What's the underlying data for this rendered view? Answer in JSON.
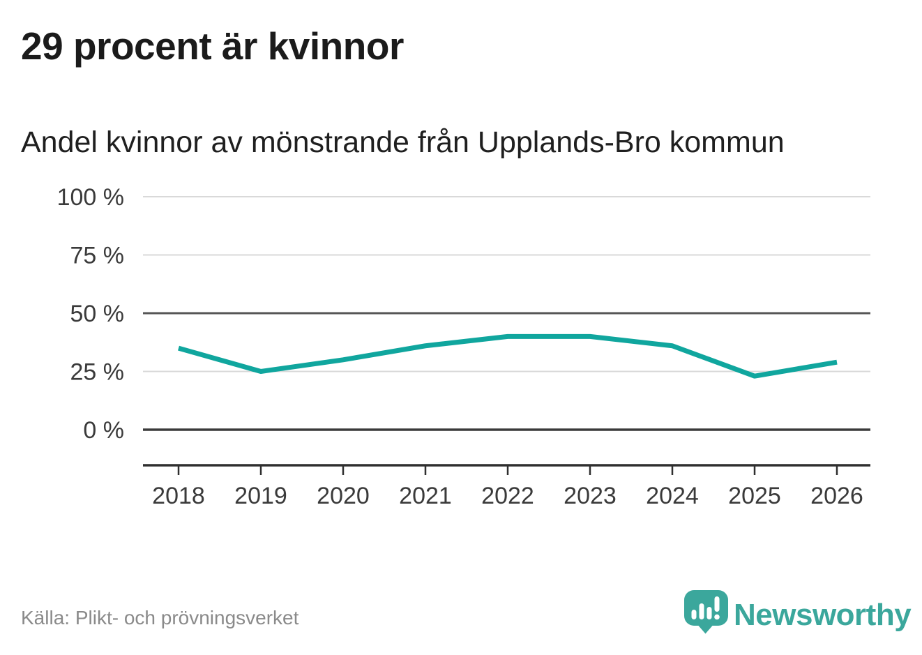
{
  "title": "29 procent är kvinnor",
  "subtitle": "Andel kvinnor av mönstrande från Upplands-Bro kommun",
  "source": "Källa: Plikt- och prövningsverket",
  "brand": {
    "name": "Newsworthy",
    "icon": "newsworthy-speech-bubble-bar-chart-icon"
  },
  "colors": {
    "accent_line": "#10a69e",
    "brand_teal": "#3ba79c",
    "grid_light": "#d9d9d9",
    "grid_medium": "#565656",
    "grid_strong": "#3b3b3b",
    "axis": "#2f2f2f",
    "axis_text": "#3a3a3a",
    "title_text": "#1b1b1b",
    "source_text": "#8a8a8a"
  },
  "chart_data": {
    "type": "line",
    "title": "29 procent är kvinnor",
    "subtitle": "Andel kvinnor av mönstrande från Upplands-Bro kommun",
    "categories": [
      "2018",
      "2019",
      "2020",
      "2021",
      "2022",
      "2023",
      "2024",
      "2025",
      "2026"
    ],
    "series": [
      {
        "name": "Andel kvinnor av mönstrande, Upplands-Bro kommun",
        "unit": "%",
        "values": [
          35,
          25,
          30,
          36,
          40,
          40,
          36,
          23,
          29
        ]
      }
    ],
    "ylim": [
      0,
      100
    ],
    "yticks": [
      {
        "label": "100 %",
        "value": 100,
        "emphasis": "light"
      },
      {
        "label": "75 %",
        "value": 75,
        "emphasis": "light"
      },
      {
        "label": "50 %",
        "value": 50,
        "emphasis": "medium"
      },
      {
        "label": "25 %",
        "value": 25,
        "emphasis": "light"
      },
      {
        "label": "0 %",
        "value": 0,
        "emphasis": "strong"
      }
    ],
    "grid": "horizontal-only",
    "legend": "none",
    "xlabel": "",
    "ylabel": ""
  }
}
